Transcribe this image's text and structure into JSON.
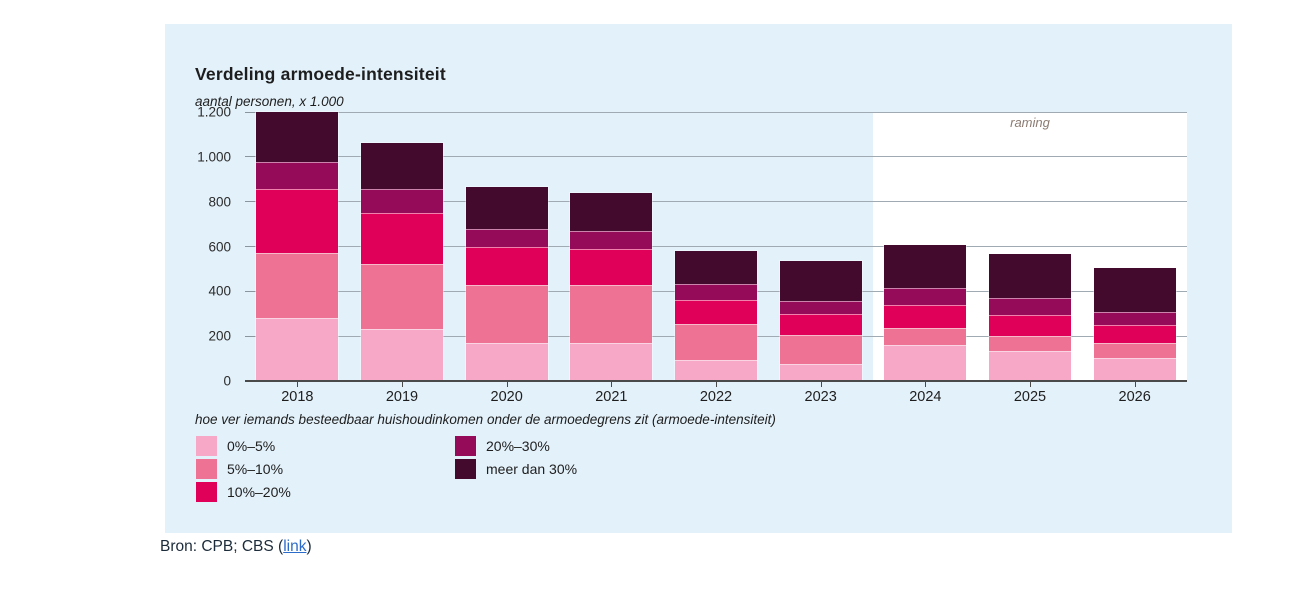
{
  "figure": {
    "title": "Verdeling armoede-intensiteit",
    "y_axis_unit": "aantal personen, x 1.000",
    "forecast_label": "raming",
    "legend_title": "hoe ver iemands besteedbaar huishoudinkomen onder de armoedegrens zit (armoede-intensiteit)"
  },
  "source": {
    "prefix": "Bron: CPB; CBS (",
    "link_text": "link",
    "suffix": ")"
  },
  "colors": {
    "panel_background": "#E3F1FA",
    "forecast_background": "#FFFFFF",
    "gridline": "#9FAAB2",
    "axis": "#4A4A4A",
    "forecast_text": "#8C7B72",
    "link": "#2B6BC9"
  },
  "chart_data": {
    "type": "bar",
    "stacked": true,
    "title": "Verdeling armoede-intensiteit",
    "ylabel": "aantal personen, x 1.000",
    "xlabel": "",
    "grid": true,
    "legend_position": "bottom-left",
    "categories": [
      "2018",
      "2019",
      "2020",
      "2021",
      "2022",
      "2023",
      "2024",
      "2025",
      "2026"
    ],
    "series": [
      {
        "name": "0%–5%",
        "color": "#F7A8C6",
        "values": [
          280,
          230,
          170,
          170,
          95,
          75,
          160,
          135,
          100
        ]
      },
      {
        "name": "5%–10%",
        "color": "#EE7294",
        "values": [
          290,
          290,
          260,
          260,
          160,
          130,
          75,
          65,
          70
        ]
      },
      {
        "name": "10%–20%",
        "color": "#E00059",
        "values": [
          285,
          230,
          170,
          160,
          105,
          95,
          105,
          95,
          80
        ]
      },
      {
        "name": "20%–30%",
        "color": "#960B59",
        "values": [
          120,
          105,
          80,
          80,
          75,
          55,
          75,
          75,
          60
        ]
      },
      {
        "name": "meer dan 30%",
        "color": "#440A2E",
        "values": [
          225,
          205,
          185,
          170,
          145,
          180,
          190,
          195,
          195
        ]
      }
    ],
    "totals": [
      1200,
      1060,
      865,
      840,
      580,
      535,
      605,
      565,
      505
    ],
    "ylim": [
      0,
      1200
    ],
    "yticks": [
      0,
      200,
      400,
      600,
      800,
      1000,
      1200
    ],
    "ytick_labels": [
      "0",
      "200",
      "400",
      "600",
      "800",
      "1.000",
      "1.200"
    ],
    "forecast": {
      "label": "raming",
      "categories": [
        "2024",
        "2025",
        "2026"
      ]
    },
    "legend_columns": [
      [
        0,
        1,
        2
      ],
      [
        3,
        4
      ]
    ]
  }
}
